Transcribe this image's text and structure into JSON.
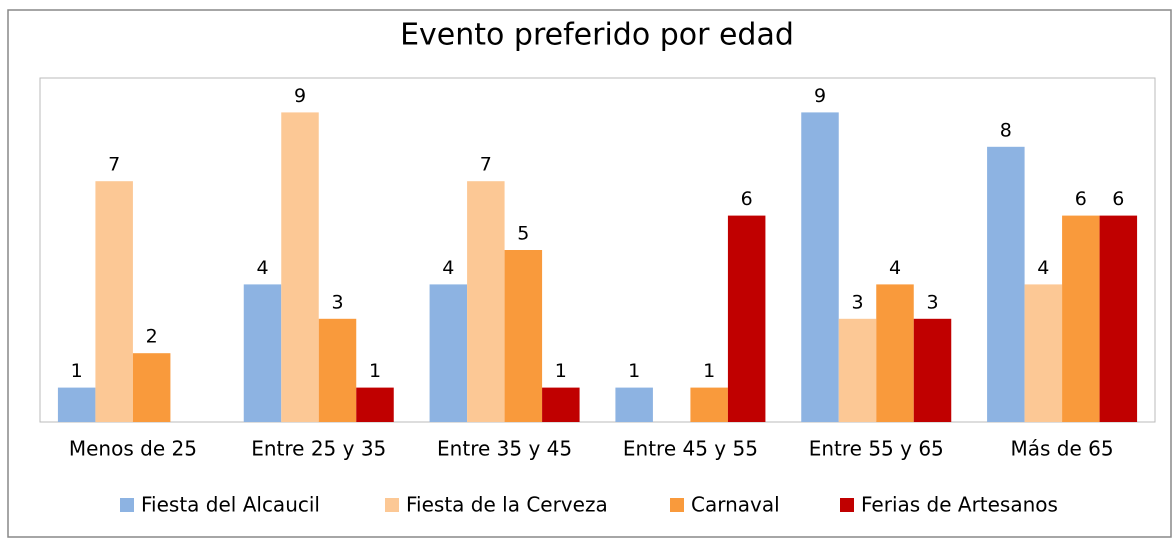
{
  "chart_data": {
    "type": "bar",
    "title": "Evento preferido por edad",
    "categories": [
      "Menos de 25",
      "Entre 25 y 35",
      "Entre 35 y 45",
      "Entre 45 y 55",
      "Entre 55 y 65",
      "Más de 65"
    ],
    "series": [
      {
        "name": "Fiesta del Alcaucil",
        "color": "#8db3e2",
        "values": [
          1,
          4,
          4,
          1,
          9,
          8
        ]
      },
      {
        "name": "Fiesta de la Cerveza",
        "color": "#fcc895",
        "values": [
          7,
          9,
          7,
          null,
          3,
          4
        ]
      },
      {
        "name": "Carnaval",
        "color": "#f99a3c",
        "values": [
          2,
          3,
          5,
          1,
          4,
          6
        ]
      },
      {
        "name": "Ferias de Artesanos",
        "color": "#c00000",
        "values": [
          null,
          1,
          1,
          6,
          3,
          6
        ]
      }
    ],
    "ylim": [
      0,
      10
    ],
    "legend": "bottom"
  }
}
